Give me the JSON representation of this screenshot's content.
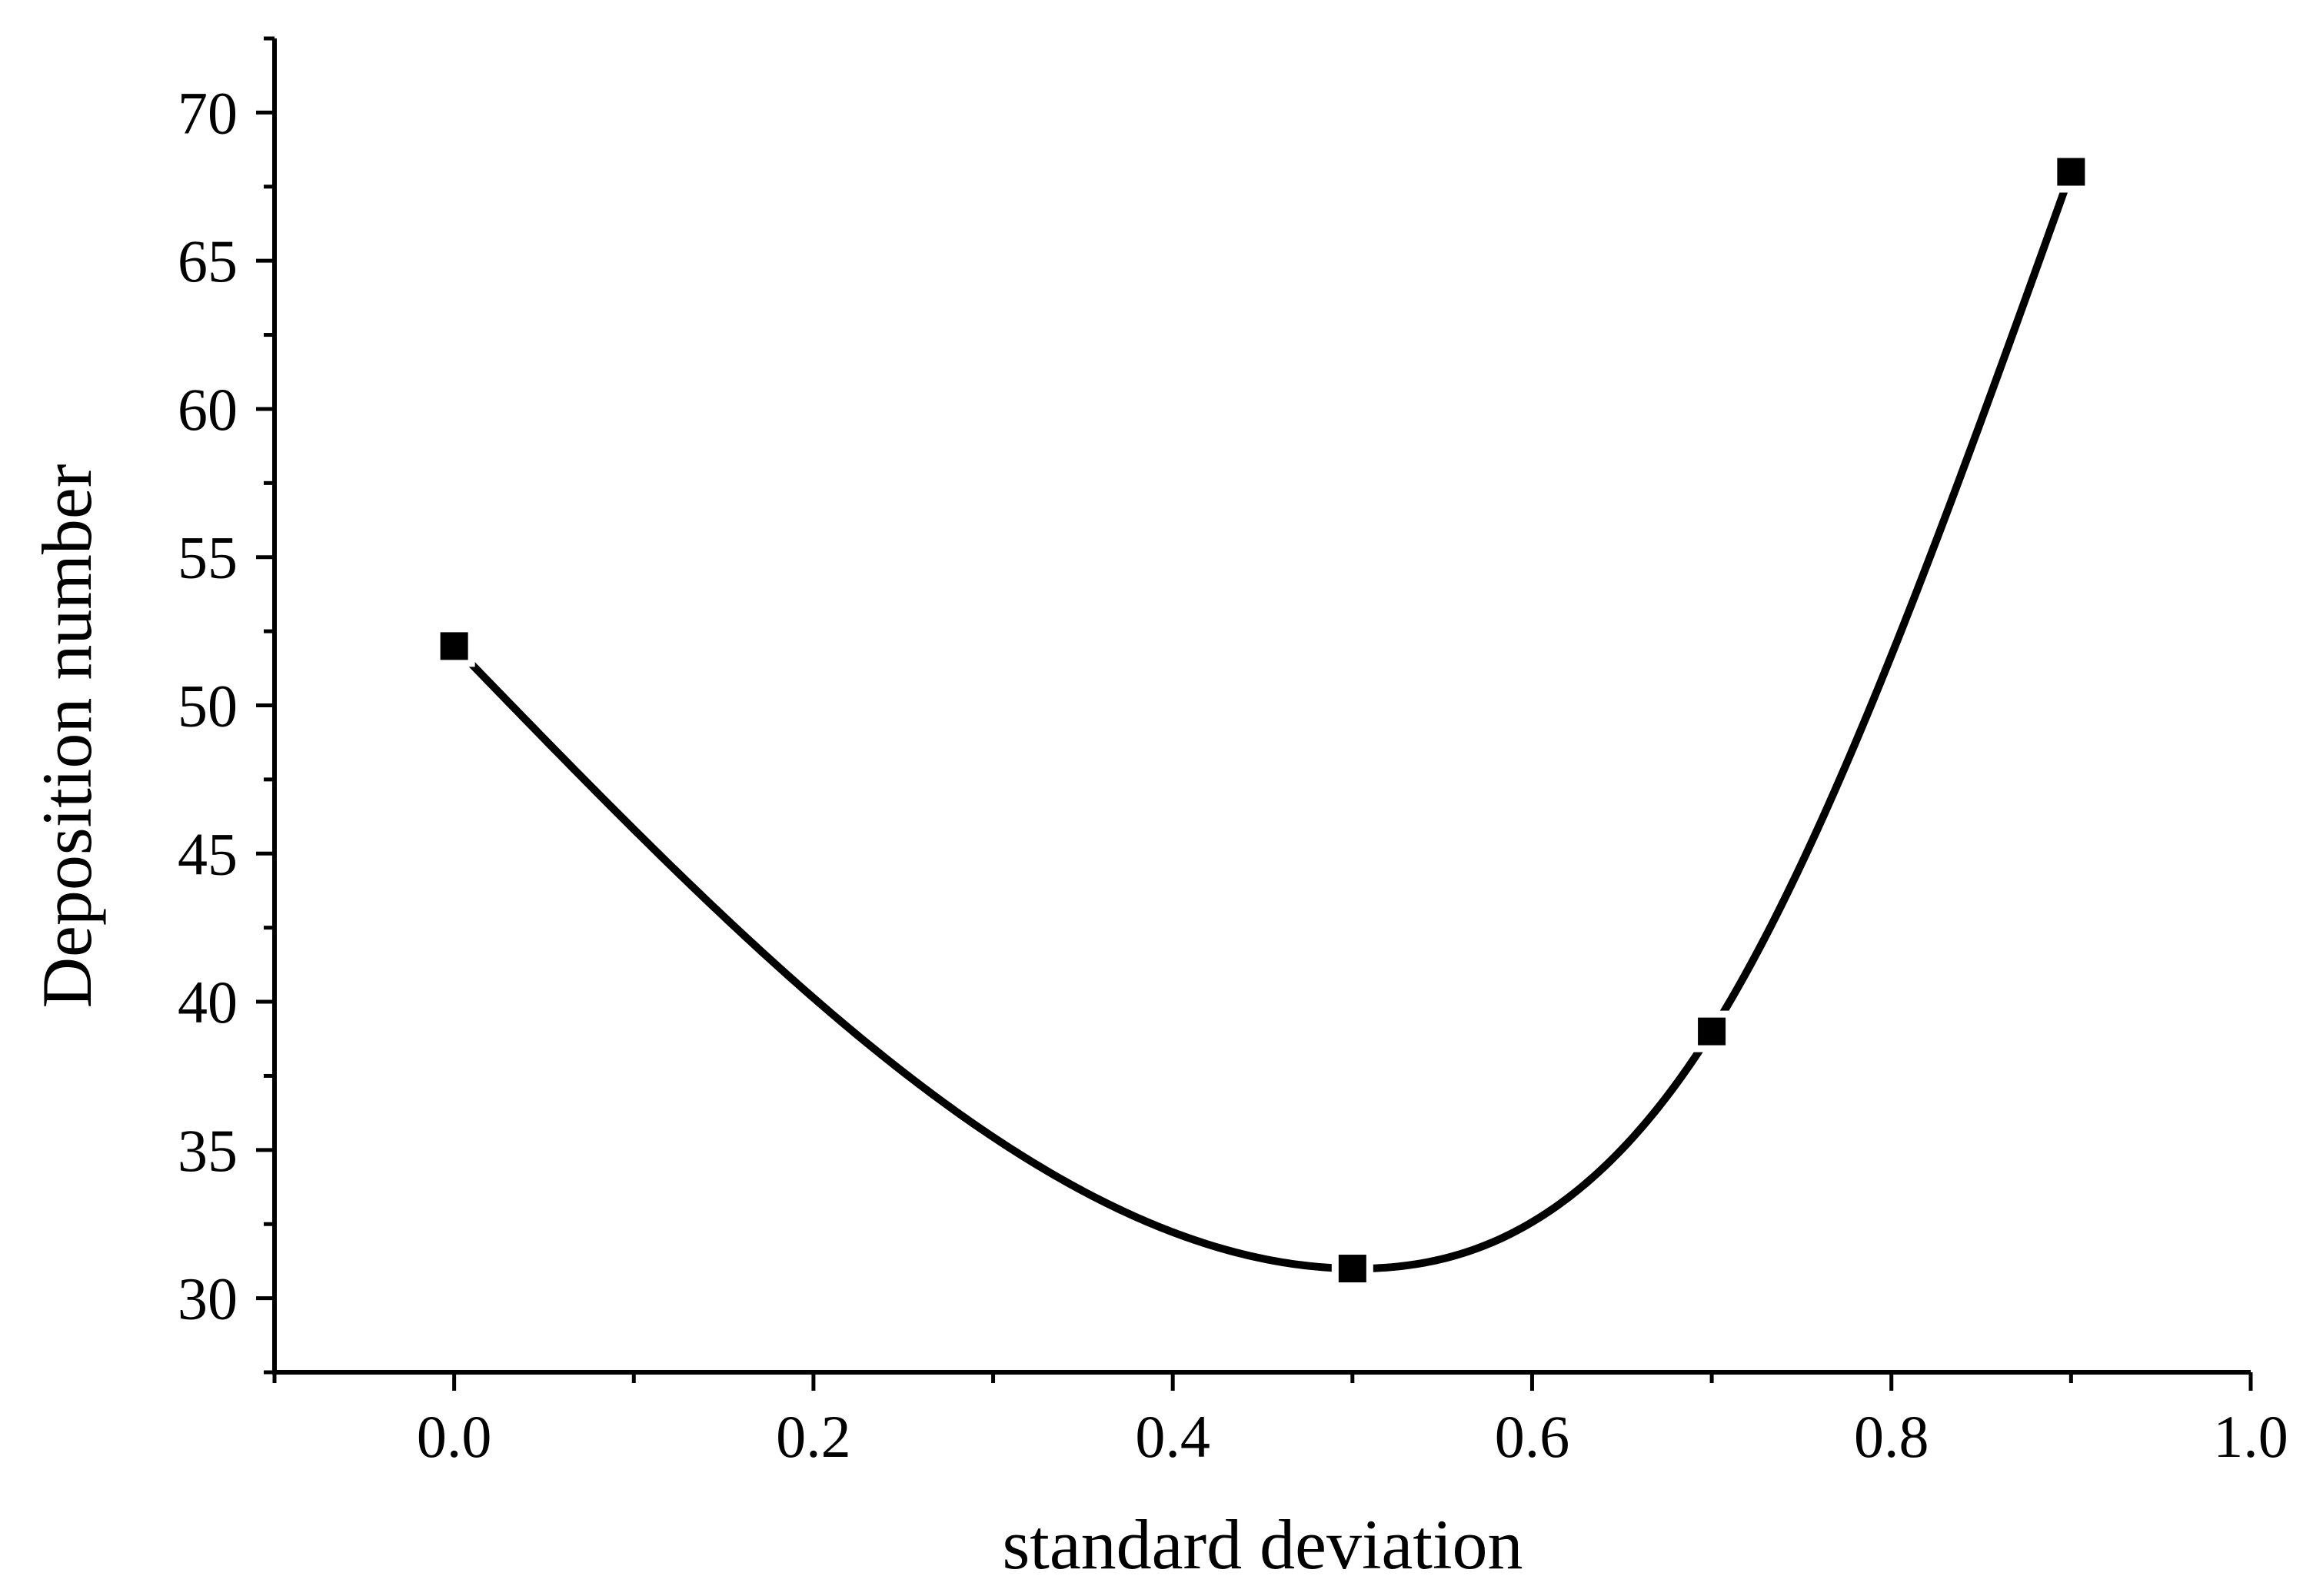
{
  "chart_data": {
    "type": "scatter",
    "title": "",
    "xlabel": "standard deviation",
    "ylabel": "Deposition number",
    "xlim": [
      -0.1,
      1.0
    ],
    "ylim": [
      27.5,
      72.5
    ],
    "x_ticks": [
      "0.0",
      "0.2",
      "0.4",
      "0.6",
      "0.8",
      "1.0"
    ],
    "y_ticks": [
      "30",
      "35",
      "40",
      "45",
      "50",
      "55",
      "60",
      "65",
      "70"
    ],
    "grid": false,
    "legend": "none",
    "series": [
      {
        "marker": "square",
        "color": "#000000",
        "line": "smooth-spline",
        "points": [
          {
            "x": 0.0,
            "y": 52
          },
          {
            "x": 0.5,
            "y": 31
          },
          {
            "x": 0.7,
            "y": 39
          },
          {
            "x": 0.9,
            "y": 68
          }
        ]
      }
    ]
  }
}
